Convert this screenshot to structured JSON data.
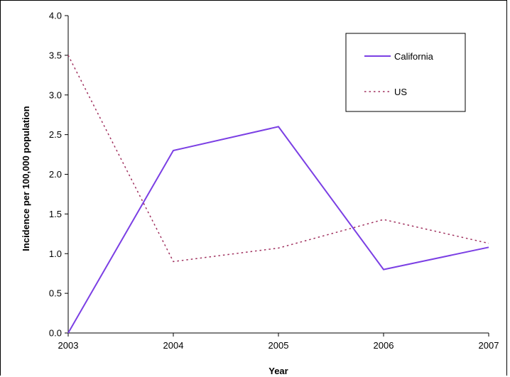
{
  "chart_data": {
    "type": "line",
    "title": "",
    "xlabel": "Year",
    "ylabel": "Incidence per 100,000 population",
    "categories": [
      "2003",
      "2004",
      "2005",
      "2006",
      "2007"
    ],
    "y_ticks": [
      "0.0",
      "0.5",
      "1.0",
      "1.5",
      "2.0",
      "2.5",
      "3.0",
      "3.5",
      "4.0"
    ],
    "ylim": [
      0,
      4
    ],
    "grid": false,
    "legend_position": "top-right",
    "series": [
      {
        "name": "California",
        "values": [
          0.0,
          2.3,
          2.6,
          0.8,
          1.08
        ],
        "color": "#7B3FE4",
        "style": "solid"
      },
      {
        "name": "US",
        "values": [
          3.5,
          0.9,
          1.07,
          1.43,
          1.13
        ],
        "color": "#A0305E",
        "style": "dotted"
      }
    ]
  }
}
